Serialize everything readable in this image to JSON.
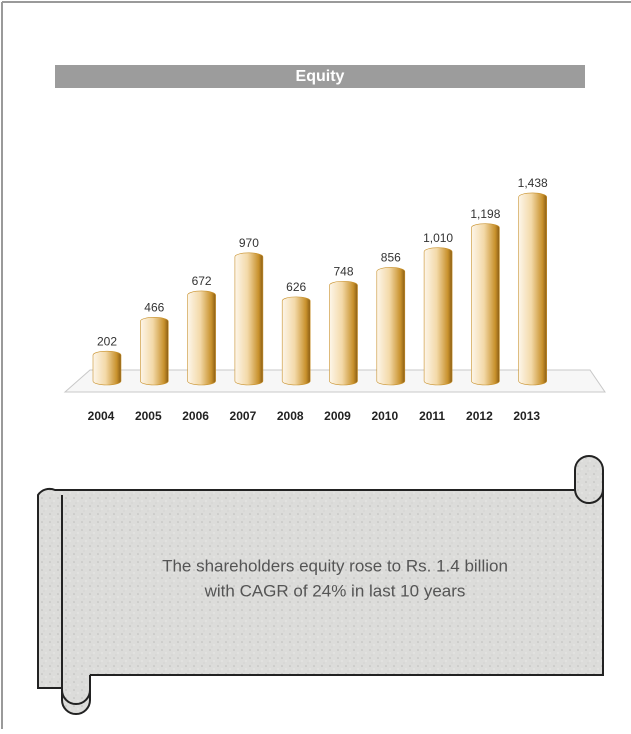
{
  "chart_data": {
    "type": "bar",
    "title": "Equity",
    "categories": [
      "2004",
      "2005",
      "2006",
      "2007",
      "2008",
      "2009",
      "2010",
      "2011",
      "2012",
      "2013"
    ],
    "values": [
      202,
      466,
      672,
      970,
      626,
      748,
      856,
      1010,
      1198,
      1438
    ],
    "value_labels": [
      "202",
      "466",
      "672",
      "970",
      "626",
      "748",
      "856",
      "1,010",
      "1,198",
      "1,438"
    ],
    "color": "#c8912c"
  },
  "note": {
    "lines": [
      "The shareholders equity rose to Rs. 1.4 billion",
      "with CAGR of 24% in last 10 years"
    ]
  }
}
